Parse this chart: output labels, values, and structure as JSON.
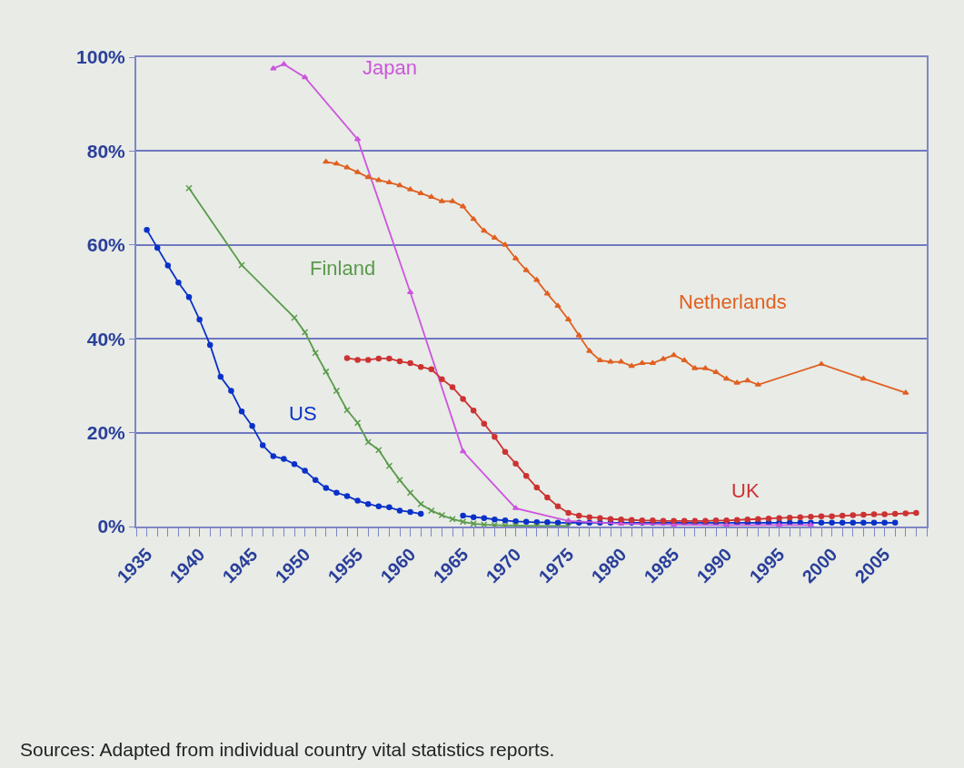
{
  "chart_data": {
    "type": "line",
    "annotations": [
      "Sources: Adapted from individual country vital statistics reports."
    ],
    "xlim": [
      1934,
      2009
    ],
    "xticks": [
      {
        "value": 1934,
        "label": null
      },
      1935,
      {
        "value": 1936,
        "label": null
      },
      {
        "value": 1937,
        "label": null
      },
      {
        "value": 1938,
        "label": null
      },
      {
        "value": 1939,
        "label": null
      },
      1940,
      {
        "value": 1941,
        "label": null
      },
      {
        "value": 1942,
        "label": null
      },
      {
        "value": 1943,
        "label": null
      },
      {
        "value": 1944,
        "label": null
      },
      1945,
      {
        "value": 1946,
        "label": null
      },
      {
        "value": 1947,
        "label": null
      },
      {
        "value": 1948,
        "label": null
      },
      {
        "value": 1949,
        "label": null
      },
      1950,
      {
        "value": 1951,
        "label": null
      },
      {
        "value": 1952,
        "label": null
      },
      {
        "value": 1953,
        "label": null
      },
      {
        "value": 1954,
        "label": null
      },
      1955,
      {
        "value": 1956,
        "label": null
      },
      {
        "value": 1957,
        "label": null
      },
      {
        "value": 1958,
        "label": null
      },
      {
        "value": 1959,
        "label": null
      },
      1960,
      {
        "value": 1961,
        "label": null
      },
      {
        "value": 1962,
        "label": null
      },
      {
        "value": 1963,
        "label": null
      },
      {
        "value": 1964,
        "label": null
      },
      1965,
      {
        "value": 1966,
        "label": null
      },
      {
        "value": 1967,
        "label": null
      },
      {
        "value": 1968,
        "label": null
      },
      {
        "value": 1969,
        "label": null
      },
      1970,
      {
        "value": 1971,
        "label": null
      },
      {
        "value": 1972,
        "label": null
      },
      {
        "value": 1973,
        "label": null
      },
      {
        "value": 1974,
        "label": null
      },
      1975,
      {
        "value": 1976,
        "label": null
      },
      {
        "value": 1977,
        "label": null
      },
      {
        "value": 1978,
        "label": null
      },
      {
        "value": 1979,
        "label": null
      },
      1980,
      {
        "value": 1981,
        "label": null
      },
      {
        "value": 1982,
        "label": null
      },
      {
        "value": 1983,
        "label": null
      },
      {
        "value": 1984,
        "label": null
      },
      1985,
      {
        "value": 1986,
        "label": null
      },
      {
        "value": 1987,
        "label": null
      },
      {
        "value": 1988,
        "label": null
      },
      {
        "value": 1989,
        "label": null
      },
      1990,
      {
        "value": 1991,
        "label": null
      },
      {
        "value": 1992,
        "label": null
      },
      {
        "value": 1993,
        "label": null
      },
      {
        "value": 1994,
        "label": null
      },
      1995,
      {
        "value": 1996,
        "label": null
      },
      {
        "value": 1997,
        "label": null
      },
      {
        "value": 1998,
        "label": null
      },
      {
        "value": 1999,
        "label": null
      },
      2000,
      {
        "value": 2001,
        "label": null
      },
      {
        "value": 2002,
        "label": null
      },
      {
        "value": 2003,
        "label": null
      },
      {
        "value": 2004,
        "label": null
      },
      2005,
      {
        "value": 2006,
        "label": null
      },
      {
        "value": 2007,
        "label": null
      },
      {
        "value": 2008,
        "label": null
      },
      {
        "value": 2009,
        "label": null
      }
    ],
    "ylim": [
      0,
      100
    ],
    "yticks": [
      {
        "value": 0,
        "label": "0%"
      },
      {
        "value": 20,
        "label": "20%"
      },
      {
        "value": 40,
        "label": "40%"
      },
      {
        "value": 60,
        "label": "60%"
      },
      {
        "value": 80,
        "label": "80%"
      },
      {
        "value": 100,
        "label": "100%"
      }
    ],
    "grid": "y",
    "legend": false,
    "line_style": "solid",
    "series": [
      {
        "name": "US",
        "color": "#0a32c8",
        "marker": "circle",
        "x": [
          1935,
          1936,
          1937,
          1938,
          1939,
          1940,
          1941,
          1942,
          1943,
          1944,
          1945,
          1946,
          1947,
          1948,
          1949,
          1950,
          1951,
          1952,
          1953,
          1954,
          1955,
          1956,
          1957,
          1958,
          1959,
          1960,
          1961,
          1962,
          1963,
          1964,
          1965,
          1966,
          1967,
          1968,
          1969,
          1970,
          1971,
          1972,
          1973,
          1974,
          1975,
          1976,
          1977,
          1978,
          1979,
          1980,
          1981,
          1982,
          1983,
          1984,
          1985,
          1986,
          1987,
          1988,
          1989,
          1990,
          1991,
          1992,
          1993,
          1994,
          1995,
          1996,
          1997,
          1998,
          1999,
          2000,
          2001,
          2002,
          2003,
          2004,
          2005,
          2006
        ],
        "values": [
          63.2,
          59.4,
          55.6,
          52.0,
          48.9,
          44.1,
          38.7,
          31.9,
          28.9,
          24.5,
          21.4,
          17.3,
          15.0,
          14.4,
          13.3,
          11.9,
          9.9,
          8.2,
          7.2,
          6.5,
          5.5,
          4.8,
          4.3,
          4.1,
          3.4,
          3.1,
          2.7,
          null,
          null,
          null,
          2.3,
          2.0,
          1.8,
          1.5,
          1.3,
          1.1,
          1.0,
          0.9,
          0.9,
          0.8,
          0.8,
          0.8,
          0.8,
          0.8,
          0.8,
          0.8,
          0.8,
          0.8,
          0.8,
          0.8,
          0.8,
          0.8,
          0.8,
          0.8,
          0.8,
          0.8,
          0.8,
          0.8,
          0.8,
          0.8,
          0.8,
          0.8,
          0.8,
          0.8,
          0.8,
          0.8,
          0.8,
          0.8,
          0.8,
          0.8,
          0.8,
          0.8
        ]
      },
      {
        "name": "Finland",
        "color": "#5a9a4a",
        "marker": "cross",
        "x": [
          1939,
          1944,
          1949,
          1950,
          1951,
          1952,
          1953,
          1954,
          1955,
          1956,
          1957,
          1958,
          1959,
          1960,
          1961,
          1962,
          1963,
          1964,
          1965,
          1966,
          1967,
          1968,
          1969,
          1970,
          1972,
          1975
        ],
        "values": [
          72.1,
          55.7,
          44.5,
          41.4,
          37.0,
          33.0,
          28.9,
          24.8,
          22.1,
          18.0,
          16.3,
          12.9,
          9.9,
          7.2,
          4.8,
          3.4,
          2.4,
          1.6,
          1.0,
          0.6,
          0.4,
          0.3,
          0.2,
          0.2,
          0.1,
          0.1
        ]
      },
      {
        "name": "Japan",
        "color": "#cc55dd",
        "marker": "triangle",
        "x": [
          1947,
          1948,
          1950,
          1955,
          1960,
          1965,
          1970,
          1975,
          1980,
          1985,
          1990,
          1995,
          1998
        ],
        "values": [
          97.6,
          98.5,
          95.7,
          82.5,
          49.9,
          16.0,
          3.9,
          1.2,
          0.6,
          0.4,
          0.3,
          0.3,
          0.3
        ]
      },
      {
        "name": "Netherlands",
        "color": "#e06020",
        "marker": "triangle",
        "x": [
          1952,
          1953,
          1954,
          1955,
          1956,
          1957,
          1958,
          1959,
          1960,
          1961,
          1962,
          1963,
          1964,
          1965,
          1966,
          1967,
          1968,
          1969,
          1970,
          1971,
          1972,
          1973,
          1974,
          1975,
          1976,
          1977,
          1978,
          1979,
          1980,
          1981,
          1982,
          1983,
          1984,
          1985,
          1986,
          1987,
          1988,
          1989,
          1990,
          1991,
          1992,
          1993,
          1999,
          2003,
          2007
        ],
        "values": [
          77.7,
          77.3,
          76.5,
          75.5,
          74.4,
          73.8,
          73.3,
          72.7,
          71.8,
          71.0,
          70.2,
          69.3,
          69.3,
          68.2,
          65.5,
          63.0,
          61.5,
          60.0,
          57.1,
          54.6,
          52.5,
          49.6,
          47.0,
          44.1,
          40.7,
          37.4,
          35.4,
          35.1,
          35.1,
          34.2,
          34.8,
          34.8,
          35.7,
          36.5,
          35.4,
          33.7,
          33.7,
          32.9,
          31.5,
          30.6,
          31.1,
          30.2,
          34.6,
          31.5,
          28.5
        ]
      },
      {
        "name": "UK",
        "color": "#cc3333",
        "marker": "circle",
        "x": [
          1954,
          1955,
          1956,
          1957,
          1958,
          1959,
          1960,
          1961,
          1962,
          1963,
          1964,
          1965,
          1966,
          1967,
          1968,
          1969,
          1970,
          1971,
          1972,
          1973,
          1974,
          1975,
          1976,
          1977,
          1978,
          1979,
          1980,
          1981,
          1982,
          1983,
          1984,
          1985,
          1986,
          1987,
          1988,
          1989,
          1990,
          1991,
          1992,
          1993,
          1994,
          1995,
          1996,
          1997,
          1998,
          1999,
          2000,
          2001,
          2002,
          2003,
          2004,
          2005,
          2006,
          2007,
          2008
        ],
        "values": [
          35.9,
          35.5,
          35.5,
          35.8,
          35.8,
          35.2,
          34.8,
          34.0,
          33.5,
          31.4,
          29.7,
          27.2,
          24.7,
          21.9,
          19.1,
          15.9,
          13.4,
          10.8,
          8.3,
          6.2,
          4.3,
          2.9,
          2.3,
          2.0,
          1.8,
          1.6,
          1.5,
          1.4,
          1.3,
          1.3,
          1.2,
          1.2,
          1.2,
          1.2,
          1.2,
          1.3,
          1.3,
          1.4,
          1.5,
          1.6,
          1.7,
          1.8,
          1.9,
          2.0,
          2.1,
          2.2,
          2.2,
          2.3,
          2.4,
          2.5,
          2.6,
          2.6,
          2.7,
          2.8,
          2.9
        ]
      }
    ]
  }
}
